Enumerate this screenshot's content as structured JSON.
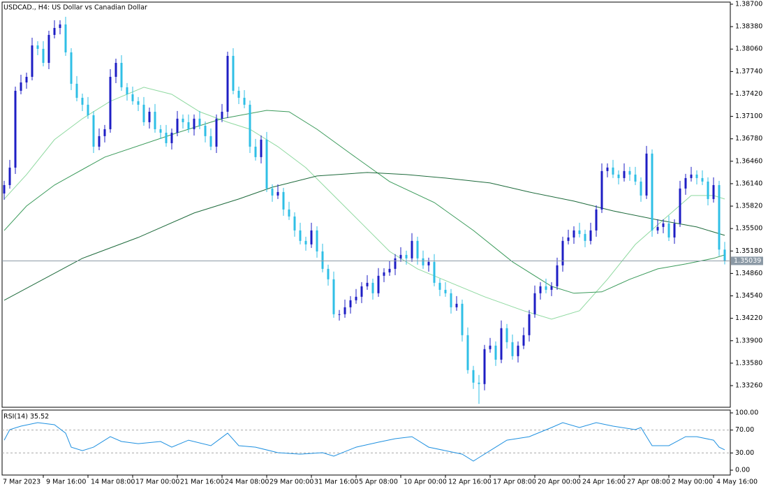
{
  "chart_data": [
    {
      "type": "candlestick",
      "title": "USDCAD., H4:  US Dollar vs Canadian Dollar",
      "up_color": "#1e1ec4",
      "down_color": "#2fbfe6",
      "open": [
        1.36,
        1.3612,
        1.36369,
        1.37465,
        1.37584,
        1.37664,
        1.38112,
        1.38063,
        1.37863,
        1.38262,
        1.38361,
        1.38411,
        1.38013,
        1.37565,
        1.37365,
        1.37266,
        1.37116,
        1.36668,
        1.36818,
        1.36917,
        1.37664,
        1.37863,
        1.37515,
        1.37415,
        1.37316,
        1.37266,
        1.37017,
        1.37166,
        1.36917,
        1.36867,
        1.36718,
        1.36867,
        1.37067,
        1.37017,
        1.36917,
        1.37067,
        1.36967,
        1.36818,
        1.36668,
        1.37067,
        1.37166,
        1.37963,
        1.37465,
        1.37365,
        1.37266,
        1.36668,
        1.36519,
        1.36768,
        1.36071,
        1.35971,
        1.36021,
        1.35772,
        1.35672,
        1.35473,
        1.35324,
        1.35274,
        1.35473,
        1.35174,
        1.34925,
        1.34776,
        1.34278,
        1.34278,
        1.34377,
        1.34477,
        1.34527,
        1.34676,
        1.34726,
        1.34577,
        1.34826,
        1.34875,
        1.34925,
        1.35075,
        1.35124,
        1.35075,
        1.35324,
        1.35075,
        1.34975,
        1.35025,
        1.34726,
        1.34626,
        1.34577,
        1.34377,
        1.34427,
        1.33979,
        1.33481,
        1.33302,
        1.33282,
        1.3378,
        1.3383,
        1.3363,
        1.34079,
        1.33879,
        1.3368,
        1.3383,
        1.33979,
        1.34278,
        1.34577,
        1.34676,
        1.34626,
        1.34676,
        1.34975,
        1.35324,
        1.35373,
        1.35473,
        1.35423,
        1.35324,
        1.35473,
        1.35772,
        1.3632,
        1.3637,
        1.3627,
        1.3622,
        1.3632,
        1.3627,
        1.3617,
        1.35971,
        1.36569,
        1.35473,
        1.35523,
        1.35573,
        1.35373,
        1.35573,
        1.36071,
        1.3622,
        1.3627,
        1.3622,
        1.3617,
        1.35921,
        1.3612,
        1.352
      ],
      "high": [
        1.3618,
        1.36479,
        1.37525,
        1.37694,
        1.37724,
        1.38222,
        1.38172,
        1.38173,
        1.38322,
        1.38471,
        1.38471,
        1.38521,
        1.38073,
        1.37675,
        1.37425,
        1.37376,
        1.37176,
        1.36928,
        1.36977,
        1.37774,
        1.37923,
        1.37973,
        1.37575,
        1.37525,
        1.37376,
        1.37376,
        1.37226,
        1.37276,
        1.36977,
        1.36977,
        1.36927,
        1.37177,
        1.37127,
        1.37127,
        1.37127,
        1.37177,
        1.37027,
        1.36928,
        1.37127,
        1.37276,
        1.38023,
        1.38073,
        1.37525,
        1.37475,
        1.37326,
        1.36778,
        1.36828,
        1.36878,
        1.36131,
        1.36131,
        1.36081,
        1.35882,
        1.35732,
        1.35583,
        1.35384,
        1.35583,
        1.35533,
        1.35284,
        1.34985,
        1.34886,
        1.34338,
        1.34487,
        1.34537,
        1.34637,
        1.34736,
        1.34836,
        1.34786,
        1.34936,
        1.34935,
        1.35035,
        1.35135,
        1.35234,
        1.35184,
        1.35434,
        1.35384,
        1.35185,
        1.35085,
        1.35135,
        1.34786,
        1.34736,
        1.34637,
        1.34537,
        1.34487,
        1.34089,
        1.33541,
        1.33412,
        1.3384,
        1.3394,
        1.3389,
        1.34189,
        1.34139,
        1.33989,
        1.3389,
        1.34089,
        1.34338,
        1.34687,
        1.34736,
        1.34786,
        1.34736,
        1.35085,
        1.35384,
        1.35483,
        1.35533,
        1.35583,
        1.35483,
        1.35583,
        1.35832,
        1.3643,
        1.3643,
        1.3648,
        1.3633,
        1.3643,
        1.3638,
        1.3638,
        1.3623,
        1.36679,
        1.36629,
        1.35633,
        1.35633,
        1.35683,
        1.35633,
        1.36181,
        1.3628,
        1.3638,
        1.3633,
        1.3633,
        1.3623,
        1.3623,
        1.3618,
        1.3531
      ],
      "low": [
        1.3591,
        1.3607,
        1.36279,
        1.37415,
        1.37494,
        1.37614,
        1.37973,
        1.37813,
        1.37773,
        1.38212,
        1.38271,
        1.37963,
        1.37475,
        1.37315,
        1.37176,
        1.37066,
        1.36578,
        1.36618,
        1.36728,
        1.36867,
        1.37574,
        1.37465,
        1.37325,
        1.37266,
        1.37176,
        1.36967,
        1.36927,
        1.36867,
        1.36777,
        1.36668,
        1.36628,
        1.36817,
        1.36927,
        1.36867,
        1.36827,
        1.36917,
        1.36728,
        1.36618,
        1.36578,
        1.37017,
        1.37076,
        1.37415,
        1.37275,
        1.37216,
        1.36578,
        1.36469,
        1.36429,
        1.36021,
        1.35881,
        1.35921,
        1.35682,
        1.35622,
        1.35383,
        1.35274,
        1.35184,
        1.35224,
        1.35084,
        1.34875,
        1.34686,
        1.34228,
        1.34188,
        1.34228,
        1.34287,
        1.34427,
        1.34437,
        1.34626,
        1.34487,
        1.34527,
        1.34736,
        1.34825,
        1.34835,
        1.35025,
        1.34985,
        1.35025,
        1.34985,
        1.34925,
        1.34885,
        1.34676,
        1.34536,
        1.34527,
        1.34287,
        1.34327,
        1.33889,
        1.33431,
        1.33212,
        1.33,
        1.33192,
        1.3373,
        1.3354,
        1.3358,
        1.33789,
        1.3363,
        1.3359,
        1.3378,
        1.33889,
        1.34228,
        1.34487,
        1.34576,
        1.34536,
        1.34626,
        1.34885,
        1.35274,
        1.35283,
        1.35373,
        1.35234,
        1.35274,
        1.35383,
        1.35722,
        1.3623,
        1.3622,
        1.3613,
        1.3617,
        1.3618,
        1.3612,
        1.35881,
        1.35921,
        1.35383,
        1.35423,
        1.35433,
        1.35323,
        1.35283,
        1.35523,
        1.35981,
        1.3617,
        1.3613,
        1.3612,
        1.35831,
        1.35871,
        1.3511,
        1.34989
      ],
      "close": [
        1.3612,
        1.36369,
        1.37465,
        1.37584,
        1.37664,
        1.38112,
        1.38063,
        1.37863,
        1.38262,
        1.38361,
        1.38411,
        1.38013,
        1.37565,
        1.37365,
        1.37266,
        1.37116,
        1.36668,
        1.36818,
        1.36917,
        1.37664,
        1.37863,
        1.37515,
        1.37415,
        1.37316,
        1.37266,
        1.37017,
        1.37166,
        1.36917,
        1.36867,
        1.36718,
        1.36867,
        1.37067,
        1.37017,
        1.36917,
        1.37067,
        1.36967,
        1.36818,
        1.36668,
        1.37067,
        1.37166,
        1.37963,
        1.37465,
        1.37365,
        1.37266,
        1.36668,
        1.36519,
        1.36768,
        1.36071,
        1.35971,
        1.36021,
        1.35772,
        1.35672,
        1.35473,
        1.35324,
        1.35274,
        1.35473,
        1.35174,
        1.34925,
        1.34776,
        1.34278,
        1.34278,
        1.34377,
        1.34477,
        1.34527,
        1.34676,
        1.34726,
        1.34577,
        1.34826,
        1.34875,
        1.34925,
        1.35075,
        1.35124,
        1.35075,
        1.35324,
        1.35075,
        1.34975,
        1.35025,
        1.34726,
        1.34626,
        1.34577,
        1.34377,
        1.34427,
        1.33979,
        1.33481,
        1.33302,
        1.33282,
        1.3378,
        1.3383,
        1.3363,
        1.34079,
        1.33879,
        1.3368,
        1.3383,
        1.33979,
        1.34278,
        1.34577,
        1.34676,
        1.34626,
        1.34676,
        1.34975,
        1.35324,
        1.35373,
        1.35473,
        1.35423,
        1.35324,
        1.35473,
        1.35772,
        1.3632,
        1.3637,
        1.3627,
        1.3622,
        1.3632,
        1.3627,
        1.3617,
        1.35971,
        1.36569,
        1.35473,
        1.35523,
        1.35573,
        1.35373,
        1.35573,
        1.36071,
        1.3622,
        1.3627,
        1.3622,
        1.3617,
        1.35921,
        1.3612,
        1.352,
        1.35039
      ],
      "moving_averages": [
        {
          "color": "#8fd9a0",
          "x": [
            0,
            4,
            9,
            14,
            19,
            25,
            30,
            35,
            40,
            44,
            49,
            54,
            59,
            64,
            69,
            74,
            80,
            86,
            93,
            98,
            103,
            108,
            113,
            118,
            123,
            127,
            129
          ],
          "values": [
            1.35921,
            1.3627,
            1.36768,
            1.37067,
            1.37316,
            1.37515,
            1.37415,
            1.37166,
            1.37017,
            1.36917,
            1.36668,
            1.36369,
            1.35971,
            1.35573,
            1.35174,
            1.34925,
            1.34726,
            1.34527,
            1.34328,
            1.34208,
            1.34328,
            1.34776,
            1.35274,
            1.35623,
            1.35971,
            1.35971,
            1.35921
          ]
        },
        {
          "color": "#3a9a5a",
          "x": [
            0,
            4,
            9,
            18,
            31,
            39,
            47,
            51,
            56,
            62,
            69,
            77,
            84,
            91,
            98,
            102,
            107,
            112,
            117,
            122,
            127,
            129
          ],
          "values": [
            1.35473,
            1.35822,
            1.3612,
            1.36519,
            1.36867,
            1.37067,
            1.37186,
            1.37166,
            1.36917,
            1.36569,
            1.3617,
            1.35871,
            1.35473,
            1.35025,
            1.34676,
            1.34577,
            1.34597,
            1.34776,
            1.34925,
            1.34995,
            1.35075,
            1.35124
          ]
        },
        {
          "color": "#1d6a3b",
          "x": [
            0,
            7,
            14,
            24,
            34,
            42,
            48,
            56,
            65,
            72,
            79,
            87,
            94,
            102,
            109,
            117,
            124,
            129
          ],
          "values": [
            1.34477,
            1.34776,
            1.35075,
            1.35373,
            1.35722,
            1.35921,
            1.3609,
            1.3625,
            1.363,
            1.3627,
            1.3622,
            1.3615,
            1.36021,
            1.35891,
            1.35752,
            1.35623,
            1.35523,
            1.35403
          ]
        }
      ],
      "last_price": 1.35039,
      "price_line_color": "#8c9aa6",
      "xlim": [
        -0.375,
        130
      ],
      "ylim": [
        1.32951,
        1.3873
      ],
      "yticks": [
        {
          "value": 1.387,
          "label": "1.38700"
        },
        {
          "value": 1.3838,
          "label": "1.38380"
        },
        {
          "value": 1.3806,
          "label": "1.38060"
        },
        {
          "value": 1.3774,
          "label": "1.37740"
        },
        {
          "value": 1.3742,
          "label": "1.37420"
        },
        {
          "value": 1.371,
          "label": "1.37100"
        },
        {
          "value": 1.3678,
          "label": "1.36780"
        },
        {
          "value": 1.3646,
          "label": "1.36460"
        },
        {
          "value": 1.3614,
          "label": "1.36140"
        },
        {
          "value": 1.3582,
          "label": "1.35820"
        },
        {
          "value": 1.355,
          "label": "1.35500"
        },
        {
          "value": 1.3518,
          "label": "1.35180"
        },
        {
          "value": 1.3486,
          "label": "1.34860"
        },
        {
          "value": 1.3454,
          "label": "1.34540"
        },
        {
          "value": 1.3422,
          "label": "1.34220"
        },
        {
          "value": 1.339,
          "label": "1.33900"
        },
        {
          "value": 1.3358,
          "label": "1.33580"
        },
        {
          "value": 1.3326,
          "label": "1.33260"
        }
      ]
    },
    {
      "type": "line",
      "name": "RSI(14)",
      "last_value": 35.52,
      "series": [
        {
          "color": "#1e90e0",
          "x": [
            0,
            1,
            3,
            6,
            9,
            11,
            12,
            14,
            16,
            19,
            21,
            24,
            28,
            30,
            33,
            37,
            40,
            42,
            45,
            49,
            53,
            57,
            59,
            63,
            67,
            70,
            73,
            76,
            79,
            82,
            84,
            85,
            88,
            90,
            94,
            98,
            100,
            103,
            106,
            109,
            113,
            114,
            116,
            119,
            122,
            124,
            127,
            128,
            129
          ],
          "values": [
            52.4,
            70.7,
            76.8,
            82.9,
            79.3,
            64.6,
            40.2,
            34.1,
            40.2,
            58.5,
            50.0,
            46.3,
            50.0,
            40.2,
            52.4,
            42.7,
            64.6,
            42.7,
            40.2,
            30.5,
            28.0,
            30.5,
            24.4,
            40.2,
            48.8,
            54.9,
            58.5,
            40.2,
            34.1,
            28.0,
            15.9,
            22.0,
            40.2,
            52.4,
            58.5,
            74.4,
            82.9,
            74.4,
            82.9,
            76.8,
            70.7,
            74.4,
            42.7,
            42.7,
            58.5,
            58.5,
            52.4,
            40.2,
            35.52
          ]
        }
      ],
      "levels": [
        70,
        30
      ],
      "xlim": [
        -0.375,
        130
      ],
      "ylim": [
        -8.5,
        104.9
      ],
      "yticks": [
        {
          "value": 100,
          "label": "100.00"
        },
        {
          "value": 70,
          "label": "70.00"
        },
        {
          "value": 30,
          "label": "30.00"
        },
        {
          "value": 0,
          "label": "0.00"
        }
      ],
      "xticks": [
        {
          "value": -1,
          "label": "7 Mar 2023"
        },
        {
          "value": 7,
          "label": "9 Mar 16:00"
        },
        {
          "value": 15,
          "label": "14 Mar 08:00"
        },
        {
          "value": 23,
          "label": "17 Mar 00:00"
        },
        {
          "value": 31,
          "label": "21 Mar 16:00"
        },
        {
          "value": 39,
          "label": "24 Mar 08:00"
        },
        {
          "value": 47,
          "label": "29 Mar 00:00"
        },
        {
          "value": 55,
          "label": "31 Mar 16:00"
        },
        {
          "value": 63,
          "label": "5 Apr 08:00"
        },
        {
          "value": 71,
          "label": "10 Apr 00:00"
        },
        {
          "value": 79,
          "label": "12 Apr 16:00"
        },
        {
          "value": 87,
          "label": "17 Apr 08:00"
        },
        {
          "value": 95,
          "label": "20 Apr 00:00"
        },
        {
          "value": 103,
          "label": "24 Apr 16:00"
        },
        {
          "value": 111,
          "label": "27 Apr 08:00"
        },
        {
          "value": 119,
          "label": "2 May 00:00"
        },
        {
          "value": 127,
          "label": "4 May 16:00"
        }
      ]
    }
  ]
}
